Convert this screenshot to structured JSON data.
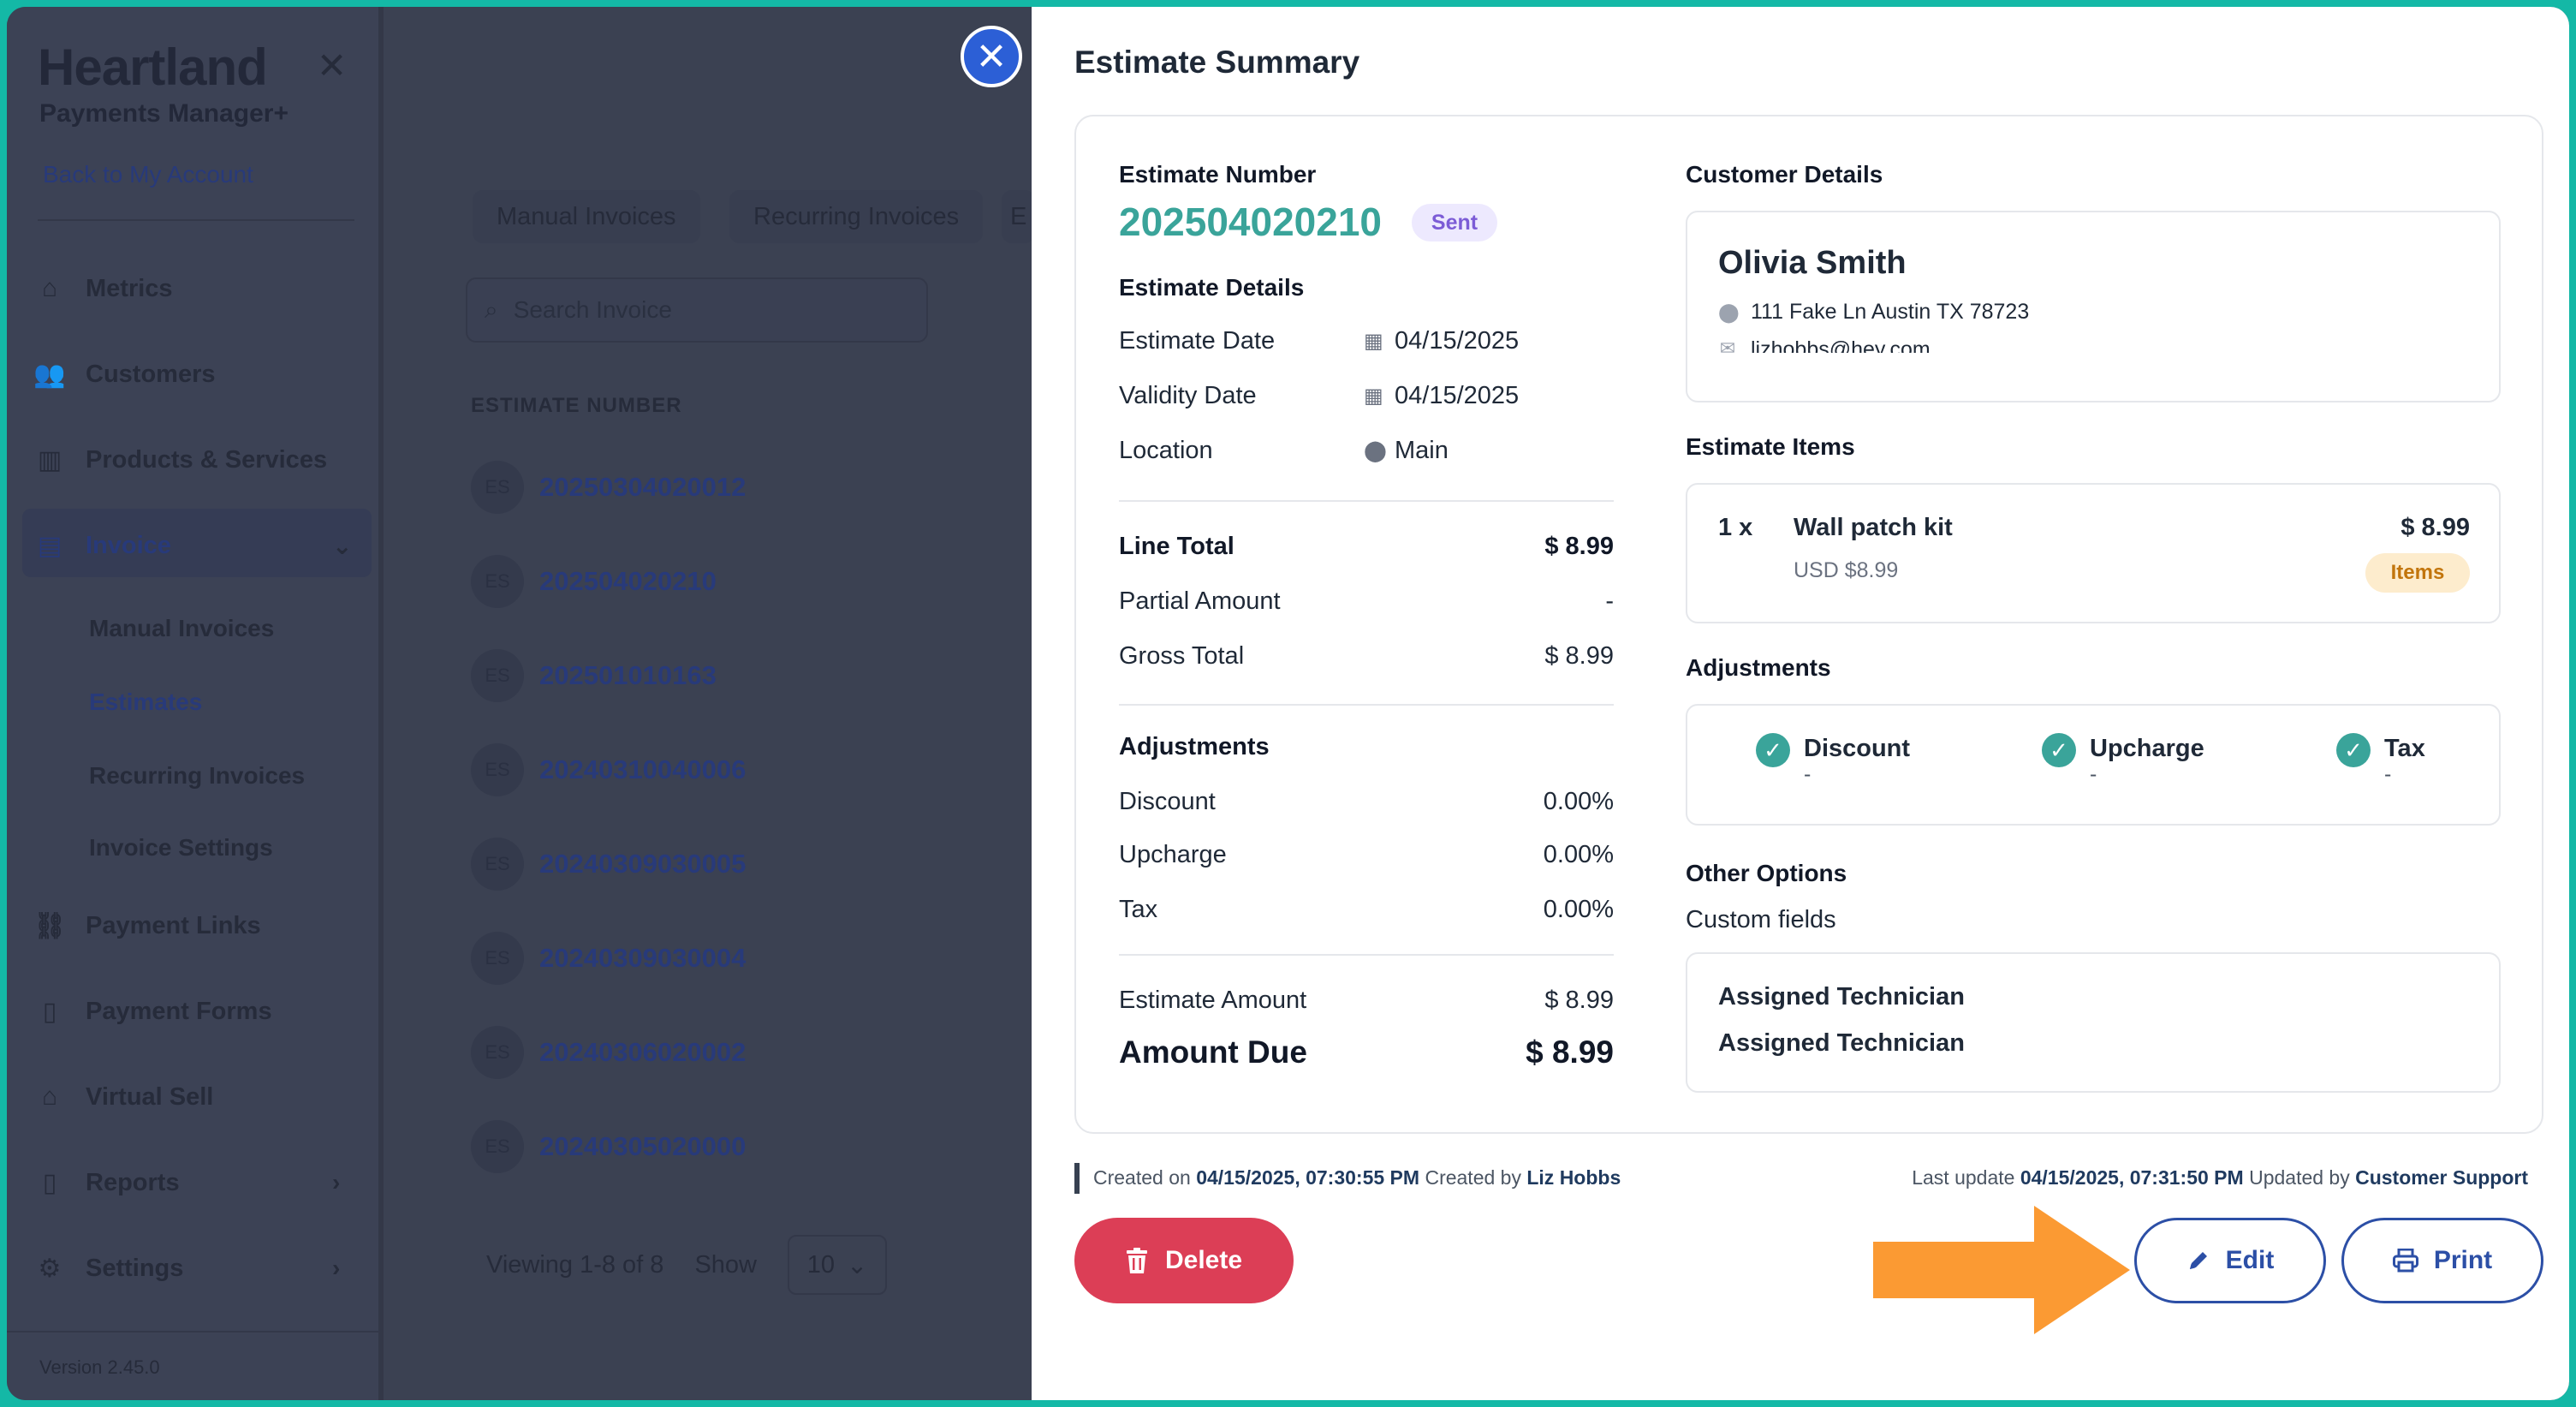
{
  "app": {
    "brand": "Heartland",
    "brand_sub": "Payments Manager+",
    "back_link": "Back to My Account",
    "version": "Version 2.45.0"
  },
  "sidebar": {
    "items": [
      {
        "label": "Metrics",
        "icon": "home-icon"
      },
      {
        "label": "Customers",
        "icon": "users-icon"
      },
      {
        "label": "Products & Services",
        "icon": "chart-icon"
      },
      {
        "label": "Invoice",
        "icon": "invoice-icon"
      },
      {
        "label": "Payment Links",
        "icon": "link-icon"
      },
      {
        "label": "Payment Forms",
        "icon": "form-icon"
      },
      {
        "label": "Virtual Sell",
        "icon": "bag-icon"
      },
      {
        "label": "Reports",
        "icon": "report-icon"
      },
      {
        "label": "Settings",
        "icon": "gear-icon"
      }
    ],
    "invoice_sub": [
      "Manual Invoices",
      "Estimates",
      "Recurring Invoices",
      "Invoice Settings"
    ]
  },
  "background": {
    "tabs": [
      "Manual Invoices",
      "Recurring Invoices",
      "E"
    ],
    "search_placeholder": "Search Invoice",
    "column_header": "ESTIMATE NUMBER",
    "avatar_initials": "ES",
    "rows": [
      "20250304020012",
      "202504020210",
      "202501010163",
      "20240310040006",
      "20240309030005",
      "20240309030004",
      "20240306020002",
      "20240305020000"
    ],
    "viewing": "Viewing 1-8 of 8",
    "show_label": "Show",
    "show_value": "10"
  },
  "drawer": {
    "title": "Estimate Summary",
    "estimate_number_label": "Estimate Number",
    "estimate_number": "202504020210",
    "status": "Sent",
    "details_label": "Estimate Details",
    "details": [
      {
        "label": "Estimate Date",
        "value": "04/15/2025",
        "icon": "calendar-icon"
      },
      {
        "label": "Validity Date",
        "value": "04/15/2025",
        "icon": "calendar-icon"
      },
      {
        "label": "Location",
        "value": "Main",
        "icon": "pin-icon"
      }
    ],
    "totals": {
      "line_total_label": "Line Total",
      "line_total": "$ 8.99",
      "partial_label": "Partial Amount",
      "partial": "-",
      "gross_label": "Gross Total",
      "gross": "$ 8.99"
    },
    "adjustments_label": "Adjustments",
    "adjustments": [
      {
        "label": "Discount",
        "value": "0.00%"
      },
      {
        "label": "Upcharge",
        "value": "0.00%"
      },
      {
        "label": "Tax",
        "value": "0.00%"
      }
    ],
    "estimate_amount_label": "Estimate Amount",
    "estimate_amount": "$ 8.99",
    "amount_due_label": "Amount Due",
    "amount_due": "$ 8.99",
    "customer": {
      "label": "Customer Details",
      "name": "Olivia Smith",
      "address": "111 Fake Ln Austin TX 78723",
      "email": "lizhobbs@hey.com"
    },
    "items_label": "Estimate Items",
    "item": {
      "qty": "1 x",
      "name": "Wall patch kit",
      "sub": "USD $8.99",
      "price": "$ 8.99",
      "badge": "Items"
    },
    "adjustments_right_label": "Adjustments",
    "adjustments_right": [
      {
        "label": "Discount",
        "value": "-"
      },
      {
        "label": "Upcharge",
        "value": "-"
      },
      {
        "label": "Tax",
        "value": "-"
      }
    ],
    "other_options_label": "Other Options",
    "custom_fields_label": "Custom fields",
    "custom_fields": [
      "Assigned Technician",
      "Assigned Technician"
    ],
    "meta": {
      "created_prefix": "Created on",
      "created_on": "04/15/2025, 07:30:55 PM",
      "created_by_prefix": "Created by",
      "created_by": "Liz Hobbs",
      "updated_prefix": "Last update",
      "updated_on": "04/15/2025, 07:31:50 PM",
      "updated_by_prefix": "Updated by",
      "updated_by": "Customer Support"
    },
    "buttons": {
      "delete": "Delete",
      "edit": "Edit",
      "print": "Print"
    }
  },
  "colors": {
    "accent_teal": "#3aa49a",
    "delete_red": "#dc3e56",
    "primary_blue": "#2c4fa6",
    "arrow_orange": "#fb9a33"
  }
}
